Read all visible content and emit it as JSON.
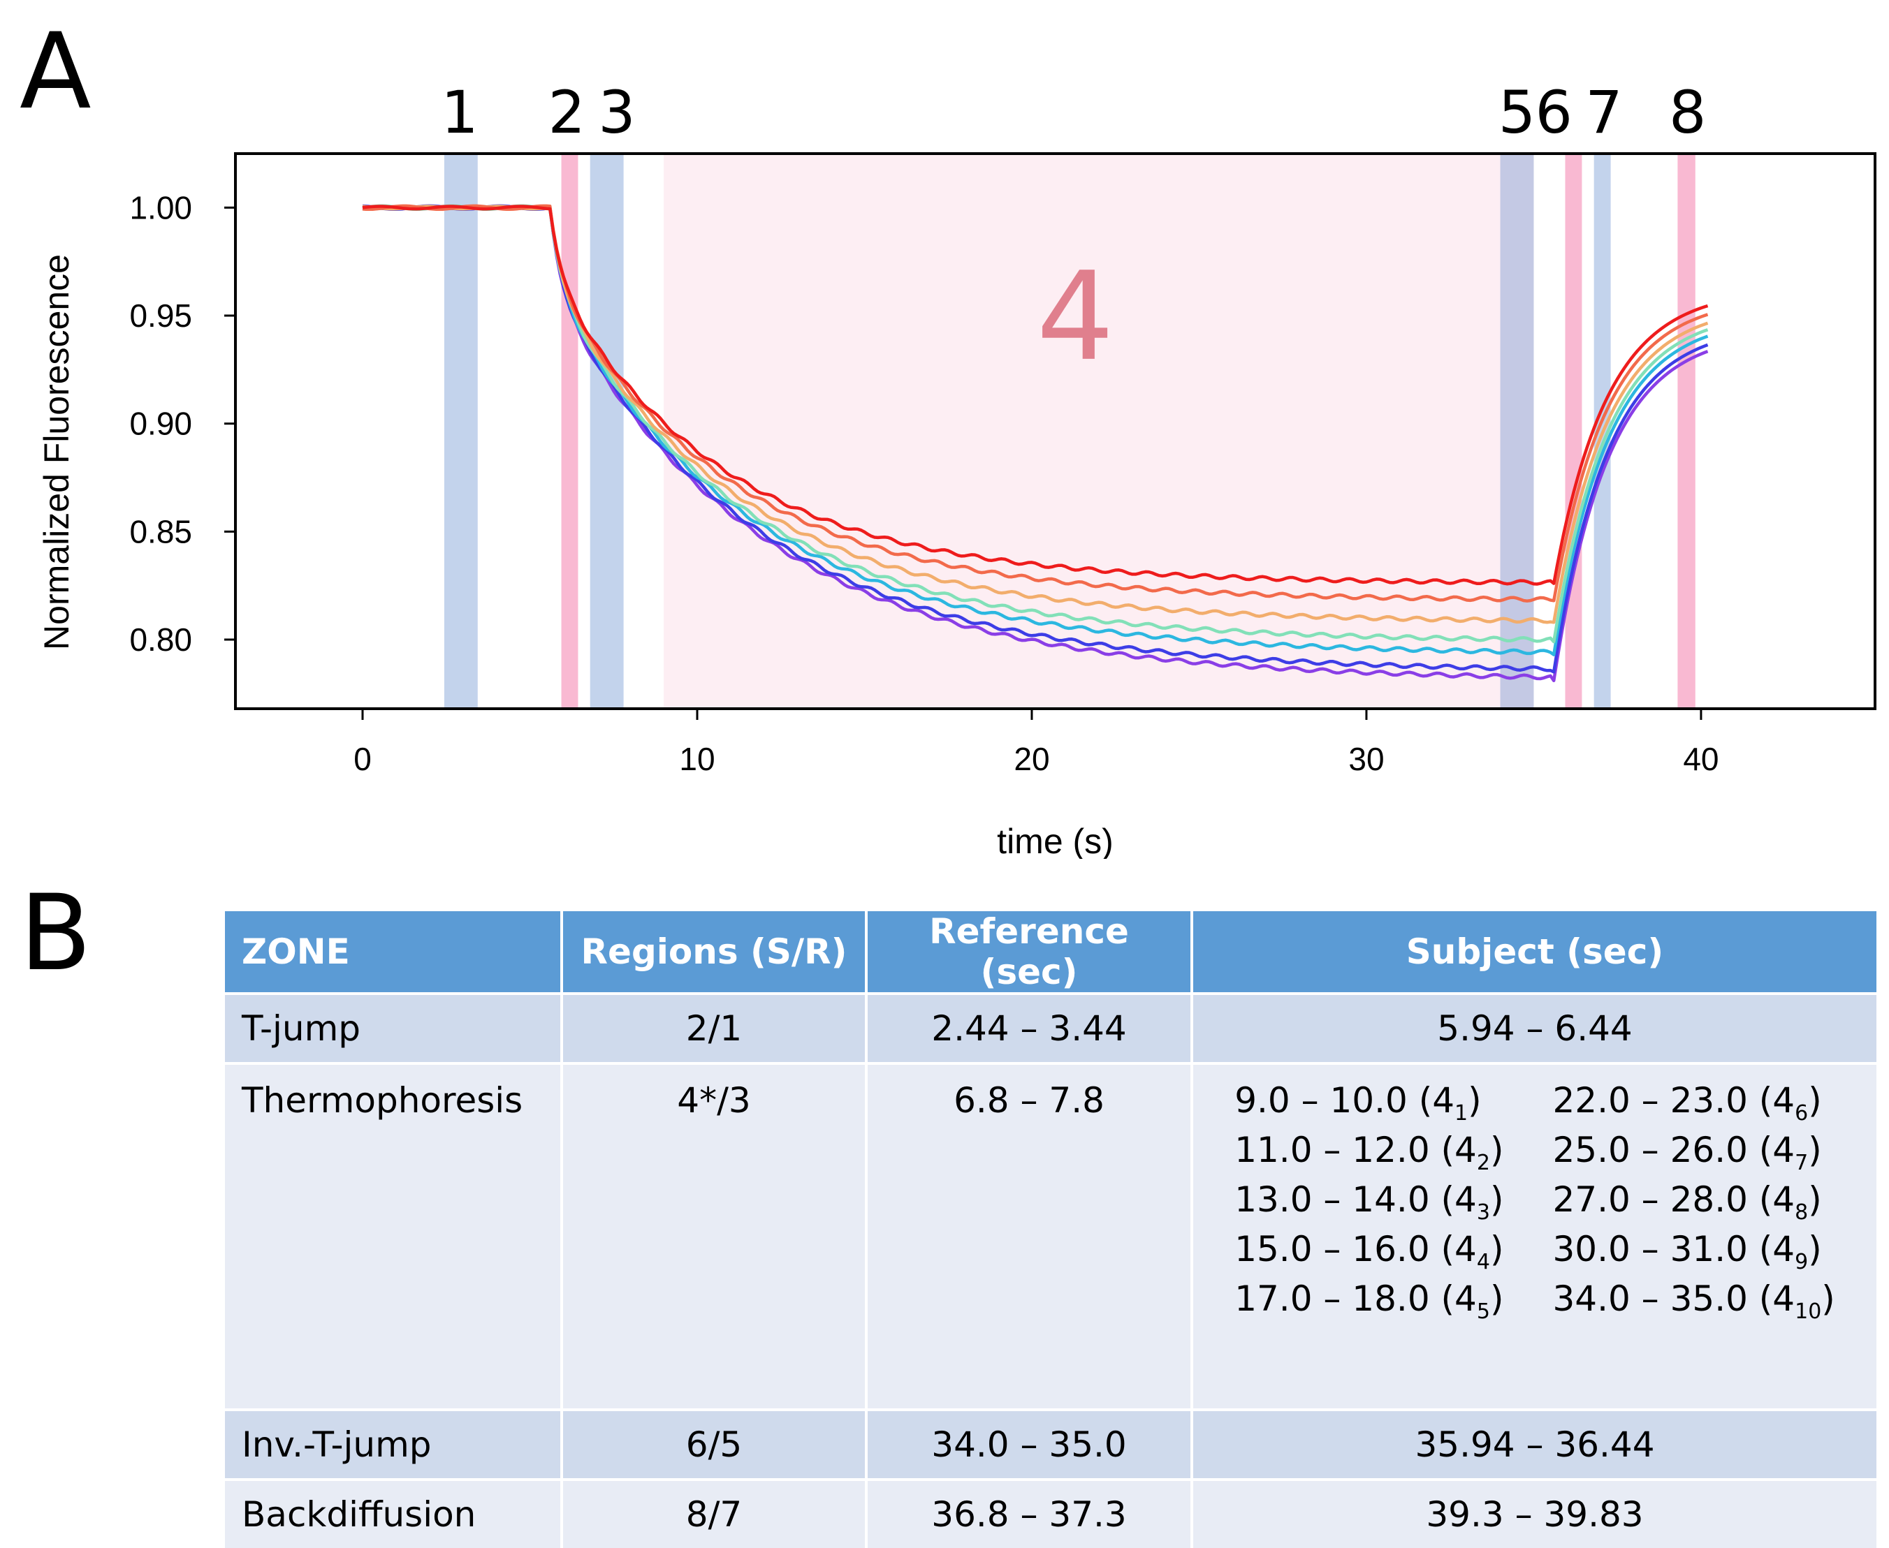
{
  "panel_a_label": "A",
  "panel_b_label": "B",
  "chart_data": {
    "type": "line",
    "xlabel": "time (s)",
    "ylabel": "Normalized Fluorescence",
    "xlim": [
      -3.8,
      45.2
    ],
    "ylim": [
      0.768,
      1.025
    ],
    "xticks": [
      0,
      10,
      20,
      30,
      40
    ],
    "yticks": [
      0.8,
      0.85,
      0.9,
      0.95,
      1.0
    ],
    "ytick_labels": [
      "0.80",
      "0.85",
      "0.90",
      "0.95",
      "1.00"
    ],
    "region_numbers": [
      {
        "label": "1",
        "x": 2.9
      },
      {
        "label": "2",
        "x": 6.1
      },
      {
        "label": "3",
        "x": 7.6
      },
      {
        "label": "5",
        "x": 34.5
      },
      {
        "label": "6",
        "x": 35.6
      },
      {
        "label": "7",
        "x": 37.1
      },
      {
        "label": "8",
        "x": 39.6
      }
    ],
    "big_region_label": {
      "label": "4",
      "x": 21.3,
      "y": 0.93
    },
    "regions": [
      {
        "name": "1",
        "x0": 2.44,
        "x1": 3.44,
        "color": "#c3d3ec"
      },
      {
        "name": "2",
        "x0": 5.94,
        "x1": 6.44,
        "color": "#f9b9d2"
      },
      {
        "name": "3",
        "x0": 6.8,
        "x1": 7.8,
        "color": "#c3d3ec"
      },
      {
        "name": "4",
        "x0": 9.0,
        "x1": 35.0,
        "color": "#fdeef3"
      },
      {
        "name": "5",
        "x0": 34.0,
        "x1": 35.0,
        "color": "#c4c9e4"
      },
      {
        "name": "6",
        "x0": 35.94,
        "x1": 36.44,
        "color": "#f9b9d2"
      },
      {
        "name": "7",
        "x0": 36.8,
        "x1": 37.3,
        "color": "#c3d3ec"
      },
      {
        "name": "8",
        "x0": 39.3,
        "x1": 39.83,
        "color": "#f9b9d2"
      }
    ],
    "series": [
      {
        "color": "#ee1c1c",
        "plateau": 0.826,
        "return": 0.955,
        "tau": 5.2
      },
      {
        "color": "#f26a4b",
        "plateau": 0.818,
        "return": 0.951,
        "tau": 5.4
      },
      {
        "color": "#f2ad6c",
        "plateau": 0.808,
        "return": 0.947,
        "tau": 5.6
      },
      {
        "color": "#82e0b8",
        "plateau": 0.799,
        "return": 0.944,
        "tau": 5.8
      },
      {
        "color": "#2cb7e0",
        "plateau": 0.793,
        "return": 0.941,
        "tau": 6.0
      },
      {
        "color": "#3d3de6",
        "plateau": 0.785,
        "return": 0.937,
        "tau": 6.2
      },
      {
        "color": "#8a3ee6",
        "plateau": 0.781,
        "return": 0.934,
        "tau": 6.3
      }
    ]
  },
  "table": {
    "headers": [
      "ZONE",
      "Regions (S/R)",
      "Reference (sec)",
      "Subject (sec)"
    ],
    "rows": [
      {
        "zone": "T-jump",
        "regions": "2/1",
        "reference": "2.44 – 3.44",
        "subject": "5.94 – 6.44"
      },
      {
        "zone": "Thermophoresis",
        "regions": "4*/3",
        "reference": "6.8 – 7.8",
        "subject_list": [
          {
            "text": "9.0 – 10.0 (4",
            "sub": "1"
          },
          {
            "text": "22.0 – 23.0 (4",
            "sub": "6"
          },
          {
            "text": "11.0 – 12.0 (4",
            "sub": "2"
          },
          {
            "text": "25.0 – 26.0 (4",
            "sub": "7"
          },
          {
            "text": "13.0 – 14.0 (4",
            "sub": "3"
          },
          {
            "text": "27.0 – 28.0 (4",
            "sub": "8"
          },
          {
            "text": "15.0 – 16.0 (4",
            "sub": "4"
          },
          {
            "text": "30.0 – 31.0 (4",
            "sub": "9"
          },
          {
            "text": "17.0 – 18.0 (4",
            "sub": "5"
          },
          {
            "text": "34.0 – 35.0 (4",
            "sub": "10"
          }
        ]
      },
      {
        "zone": "Inv.-T-jump",
        "regions": "6/5",
        "reference": "34.0 – 35.0",
        "subject": "35.94 – 36.44"
      },
      {
        "zone": "Backdiffusion",
        "regions": "8/7",
        "reference": "36.8 – 37.3",
        "subject": "39.3 – 39.83"
      }
    ]
  }
}
